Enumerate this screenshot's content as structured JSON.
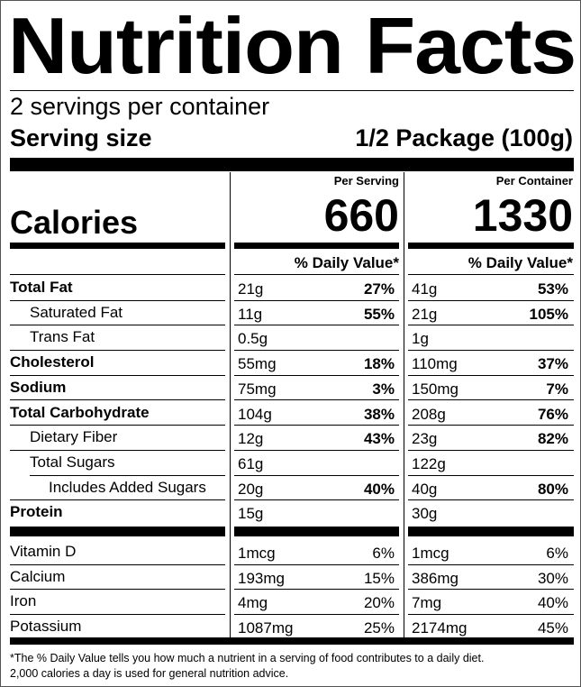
{
  "title": "Nutrition Facts",
  "servings_per_container": "2 servings per container",
  "serving_size": {
    "label": "Serving size",
    "value": "1/2 Package (100g)"
  },
  "columns": [
    {
      "header": "Per Serving",
      "calories": "660",
      "dv_header": "% Daily Value*"
    },
    {
      "header": "Per Container",
      "calories": "1330",
      "dv_header": "% Daily Value*"
    }
  ],
  "calories_label": "Calories",
  "nutrients": [
    {
      "name": "Total Fat",
      "bold": true,
      "indent": 0,
      "serving": {
        "amount": "21g",
        "dv": "27%"
      },
      "container": {
        "amount": "41g",
        "dv": "53%"
      }
    },
    {
      "name": "Saturated Fat",
      "bold": false,
      "indent": 1,
      "serving": {
        "amount": "11g",
        "dv": "55%"
      },
      "container": {
        "amount": "21g",
        "dv": "105%"
      }
    },
    {
      "name": "Trans Fat",
      "bold": false,
      "indent": 1,
      "serving": {
        "amount": "0.5g",
        "dv": ""
      },
      "container": {
        "amount": "1g",
        "dv": ""
      }
    },
    {
      "name": "Cholesterol",
      "bold": true,
      "indent": 0,
      "serving": {
        "amount": "55mg",
        "dv": "18%"
      },
      "container": {
        "amount": "110mg",
        "dv": "37%"
      }
    },
    {
      "name": "Sodium",
      "bold": true,
      "indent": 0,
      "serving": {
        "amount": "75mg",
        "dv": "3%"
      },
      "container": {
        "amount": "150mg",
        "dv": "7%"
      }
    },
    {
      "name": "Total Carbohydrate",
      "bold": true,
      "indent": 0,
      "serving": {
        "amount": "104g",
        "dv": "38%"
      },
      "container": {
        "amount": "208g",
        "dv": "76%"
      }
    },
    {
      "name": "Dietary Fiber",
      "bold": false,
      "indent": 1,
      "serving": {
        "amount": "12g",
        "dv": "43%"
      },
      "container": {
        "amount": "23g",
        "dv": "82%"
      }
    },
    {
      "name": "Total Sugars",
      "bold": false,
      "indent": 1,
      "serving": {
        "amount": "61g",
        "dv": ""
      },
      "container": {
        "amount": "122g",
        "dv": ""
      }
    },
    {
      "name": "Includes Added Sugars",
      "bold": false,
      "indent": 2,
      "serving": {
        "amount": "20g",
        "dv": "40%"
      },
      "container": {
        "amount": "40g",
        "dv": "80%"
      }
    },
    {
      "name": "Protein",
      "bold": true,
      "indent": 0,
      "serving": {
        "amount": "15g",
        "dv": ""
      },
      "container": {
        "amount": "30g",
        "dv": ""
      }
    }
  ],
  "vitamins": [
    {
      "name": "Vitamin D",
      "serving": {
        "amount": "1mcg",
        "dv": "6%"
      },
      "container": {
        "amount": "1mcg",
        "dv": "6%"
      }
    },
    {
      "name": "Calcium",
      "serving": {
        "amount": "193mg",
        "dv": "15%"
      },
      "container": {
        "amount": "386mg",
        "dv": "30%"
      }
    },
    {
      "name": "Iron",
      "serving": {
        "amount": "4mg",
        "dv": "20%"
      },
      "container": {
        "amount": "7mg",
        "dv": "40%"
      }
    },
    {
      "name": "Potassium",
      "serving": {
        "amount": "1087mg",
        "dv": "25%"
      },
      "container": {
        "amount": "2174mg",
        "dv": "45%"
      }
    }
  ],
  "footnote": [
    "*The % Daily Value tells you how much a nutrient in a serving of food contributes to a daily diet.",
    "2,000 calories a day is used for general nutrition advice."
  ]
}
